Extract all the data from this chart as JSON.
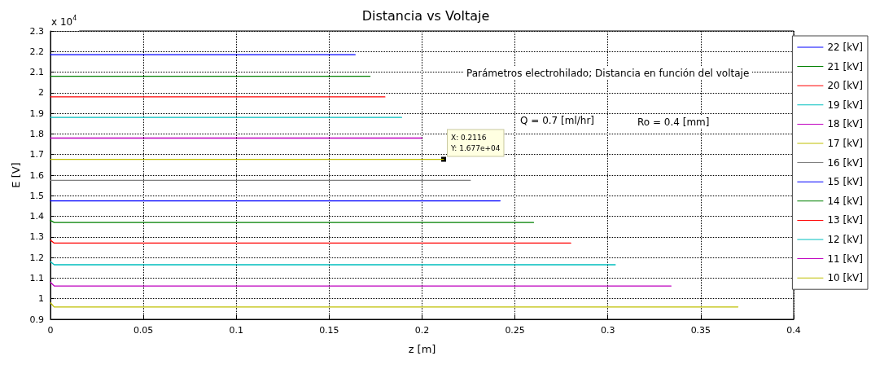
{
  "chart_data": {
    "type": "line",
    "title": "Distancia vs Voltaje",
    "xlabel": "z [m]",
    "ylabel": "E [V]",
    "xlim": [
      0,
      0.4
    ],
    "xticks": [
      0,
      0.05,
      0.1,
      0.15,
      0.2,
      0.25,
      0.3,
      0.35,
      0.4
    ],
    "ylim": [
      0.9,
      2.3
    ],
    "yticks": [
      0.9,
      1,
      1.1,
      1.2,
      1.3,
      1.4,
      1.5,
      1.6,
      1.7,
      1.8,
      1.9,
      2,
      2.1,
      2.2,
      2.3
    ],
    "grid": true,
    "legend": "right",
    "line_style": "solid",
    "annotations": [
      "x 10$^{4}$",
      "Parámetros electrohilado; Distancia en función del voltaje",
      "Q = 0.7 [ml/hr]",
      "Ro = 0.4 [mm]",
      {
        "text": "X: 0.2116\nY: 1.677e+04",
        "x": 0.2116,
        "y": 1.677
      }
    ],
    "series": [
      {
        "name": "22 [kV]",
        "color": "#0000ff",
        "x": [
          0,
          0.164
        ],
        "values": [
          2.185,
          2.185
        ]
      },
      {
        "name": "21 [kV]",
        "color": "#008000",
        "x": [
          0,
          0.172
        ],
        "values": [
          2.08,
          2.08
        ]
      },
      {
        "name": "20 [kV]",
        "color": "#ff0000",
        "x": [
          0,
          0.18
        ],
        "values": [
          1.98,
          1.98
        ]
      },
      {
        "name": "19 [kV]",
        "color": "#00bfbf",
        "x": [
          0,
          0.189
        ],
        "values": [
          1.88,
          1.88
        ]
      },
      {
        "name": "18 [kV]",
        "color": "#bf00bf",
        "x": [
          0,
          0.2
        ],
        "values": [
          1.78,
          1.78
        ]
      },
      {
        "name": "17 [kV]",
        "color": "#bfbf00",
        "x": [
          0,
          0.2116
        ],
        "values": [
          1.677,
          1.677
        ]
      },
      {
        "name": "16 [kV]",
        "color": "#808080",
        "x": [
          0,
          0.226
        ],
        "values": [
          1.575,
          1.575
        ]
      },
      {
        "name": "15 [kV]",
        "color": "#0000ff",
        "x": [
          0,
          0.242
        ],
        "values": [
          1.475,
          1.475
        ]
      },
      {
        "name": "14 [kV]",
        "color": "#008000",
        "x": [
          0,
          0.002,
          0.26
        ],
        "values": [
          1.38,
          1.37,
          1.37
        ]
      },
      {
        "name": "13 [kV]",
        "color": "#ff0000",
        "x": [
          0,
          0.002,
          0.28
        ],
        "values": [
          1.285,
          1.27,
          1.27
        ]
      },
      {
        "name": "12 [kV]",
        "color": "#00bfbf",
        "x": [
          0,
          0.002,
          0.304
        ],
        "values": [
          1.18,
          1.165,
          1.165
        ]
      },
      {
        "name": "11 [kV]",
        "color": "#bf00bf",
        "x": [
          0,
          0.002,
          0.334
        ],
        "values": [
          1.08,
          1.062,
          1.062
        ]
      },
      {
        "name": "10 [kV]",
        "color": "#bfbf00",
        "x": [
          0,
          0.002,
          0.37
        ],
        "values": [
          0.98,
          0.96,
          0.96
        ]
      }
    ]
  }
}
